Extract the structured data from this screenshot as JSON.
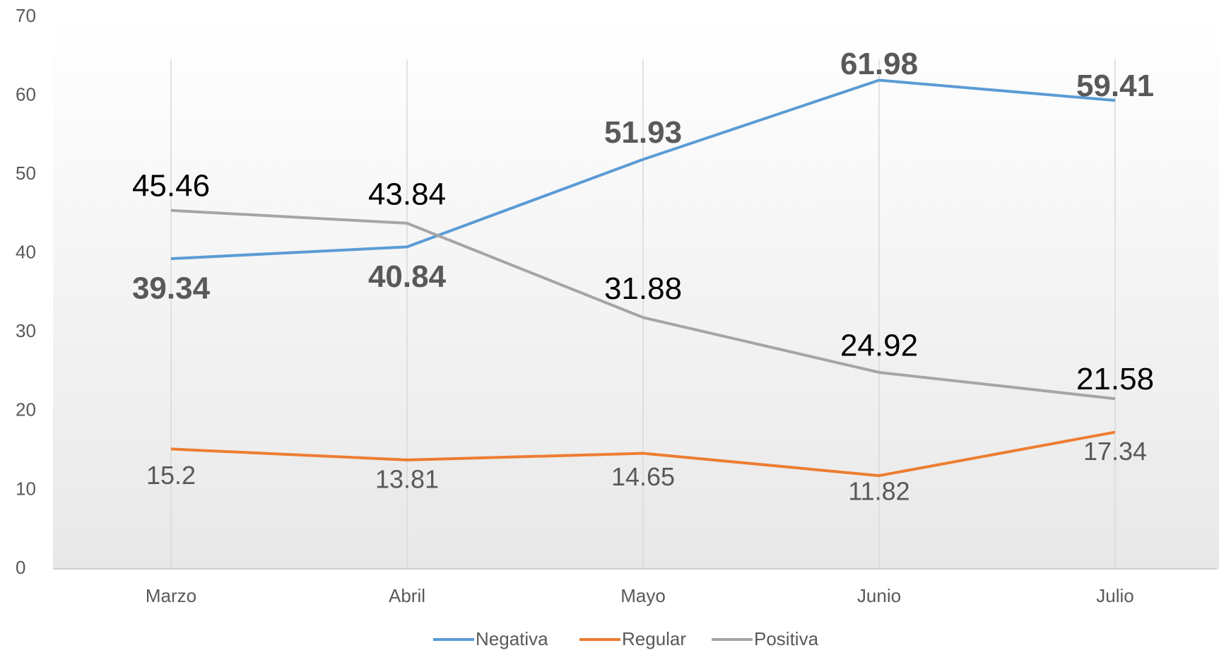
{
  "chart_data": {
    "type": "line",
    "categories": [
      "Marzo",
      "Abril",
      "Mayo",
      "Junio",
      "Julio"
    ],
    "series": [
      {
        "name": "Negativa",
        "color": "#5b9bd5",
        "values": [
          39.34,
          40.84,
          51.93,
          61.98,
          59.41
        ]
      },
      {
        "name": "Regular",
        "color": "#ed7d31",
        "values": [
          15.2,
          13.81,
          14.65,
          11.82,
          17.34
        ]
      },
      {
        "name": "Positiva",
        "color": "#a5a5a5",
        "values": [
          45.46,
          43.84,
          31.88,
          24.92,
          21.58
        ]
      }
    ],
    "ylim": [
      0,
      70
    ],
    "yticks": [
      0,
      10,
      20,
      30,
      40,
      50,
      60,
      70
    ],
    "legend": "bottom"
  }
}
